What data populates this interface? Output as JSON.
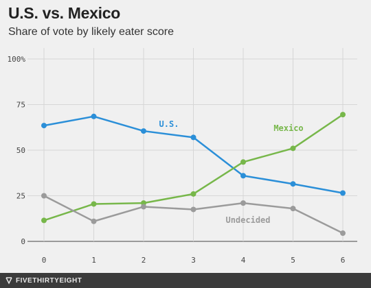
{
  "chart_data": {
    "type": "line",
    "title": "U.S. vs. Mexico",
    "subtitle": "Share of vote by likely eater score",
    "x": [
      0,
      1,
      2,
      3,
      4,
      5,
      6
    ],
    "x_tick_labels": [
      "0",
      "1",
      "2",
      "3",
      "4",
      "5",
      "6"
    ],
    "y_tick_labels": [
      "0",
      "25",
      "50",
      "75",
      "100%"
    ],
    "y_ticks": [
      0,
      25,
      50,
      75,
      100
    ],
    "xlim": [
      0,
      6
    ],
    "ylim": [
      0,
      100
    ],
    "grid": true,
    "xlabel": "",
    "ylabel": "",
    "series": [
      {
        "name": "U.S.",
        "color": "#2b8fd8",
        "values": [
          63.5,
          68.5,
          60.5,
          57,
          36,
          31.5,
          26.5
        ]
      },
      {
        "name": "Mexico",
        "color": "#77b74a",
        "values": [
          11.5,
          20.5,
          21,
          26,
          43.5,
          51,
          69.5
        ]
      },
      {
        "name": "Undecided",
        "color": "#9b9b9b",
        "values": [
          25,
          11,
          19,
          17.5,
          21,
          18,
          4.5
        ]
      }
    ]
  },
  "footer": {
    "brand": "FIVETHIRTYEIGHT"
  }
}
